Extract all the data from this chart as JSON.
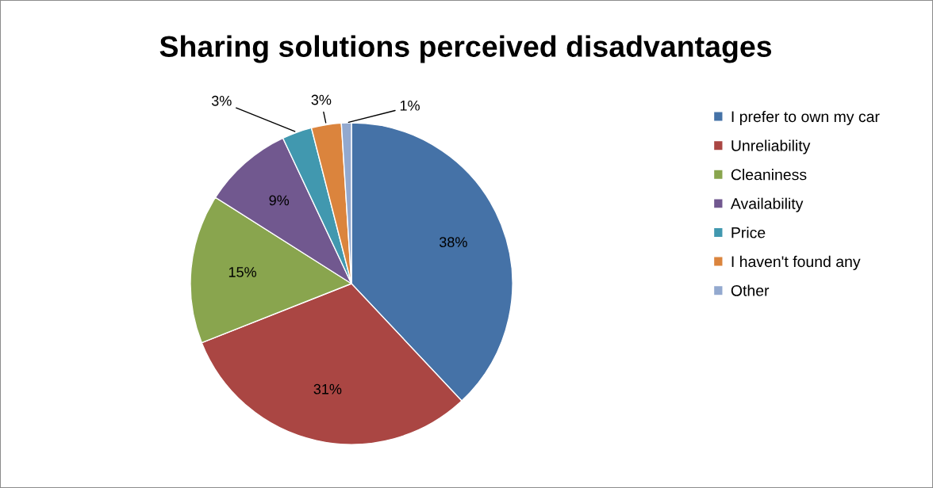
{
  "chart_data": {
    "type": "pie",
    "title": "Sharing solutions perceived disadvantages",
    "categories": [
      "I prefer to own my car",
      "Unreliability",
      "Cleaniness",
      "Availability",
      "Price",
      "I haven't found any",
      "Other"
    ],
    "values": [
      38,
      31,
      15,
      9,
      3,
      3,
      1
    ],
    "colors": [
      "#4572a7",
      "#aa4643",
      "#89a54e",
      "#71588f",
      "#4198af",
      "#db843d",
      "#93a9cf"
    ],
    "value_labels": [
      "38%",
      "31%",
      "15%",
      "9%",
      "3%",
      "3%",
      "1%"
    ],
    "legend": "right"
  }
}
